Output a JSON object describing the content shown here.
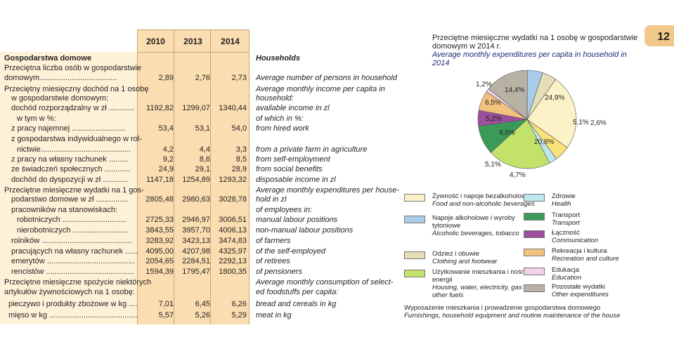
{
  "table": {
    "years": [
      "2010",
      "2013",
      "2014"
    ],
    "rows": [
      {
        "pl": "Gospodarstwa domowe",
        "en": "Households",
        "bold": true,
        "values": [
          "",
          "",
          ""
        ]
      },
      {
        "pl": "Przeciętna liczba osób w gospodarstwie",
        "en": "",
        "values": [
          "",
          "",
          ""
        ]
      },
      {
        "pl": "domowym....................................",
        "en": "Average number of persons in household",
        "values": [
          "2,89",
          "2,76",
          "2,73"
        ]
      },
      {
        "pl": "Przeciętny miesięczny dochód na 1 osobę",
        "en": "Average monthly income per capita in",
        "values": [
          "",
          "",
          ""
        ]
      },
      {
        "pl": "w gospodarstwie domowym:",
        "en": "household:",
        "values": [
          "",
          "",
          ""
        ]
      },
      {
        "pl": "dochód rozporządzalny w zł ............",
        "en": "available income in zl",
        "values": [
          "1192,82",
          "1299,07",
          "1340,44"
        ]
      },
      {
        "pl": "w tym w %:",
        "en": "of which in %:",
        "values": [
          "",
          "",
          ""
        ]
      },
      {
        "pl": "z pracy najemnej .........................",
        "en": "from hired work",
        "values": [
          "53,4",
          "53,1",
          "54,0"
        ]
      },
      {
        "pl": "z gospodarstwa indywidualnego w rol-",
        "en": "",
        "values": [
          "",
          "",
          ""
        ]
      },
      {
        "pl": "nictwie..........................................",
        "en": "from a private farm in agriculture",
        "values": [
          "4,2",
          "4,4",
          "3,3"
        ]
      },
      {
        "pl": "z pracy na własny rachunek .........",
        "en": "from self-employment",
        "values": [
          "9,2",
          "8,6",
          "8,5"
        ]
      },
      {
        "pl": "ze świadczeń społecznych ............",
        "en": "from social benefits",
        "values": [
          "24,9",
          "29,1",
          "28,9"
        ]
      },
      {
        "pl": "dochód do dyspozycji w zł ............",
        "en": "disposable income in zl",
        "values": [
          "1147,18",
          "1254,89",
          "1293,32"
        ]
      },
      {
        "pl": "Przeciętne miesięczne wydatki na 1 gos-",
        "en": "Average monthly expenditures per house-",
        "values": [
          "",
          "",
          ""
        ]
      },
      {
        "pl": "podarstwo domowe w zł ...............",
        "en": "hold in zl",
        "values": [
          "2805,48",
          "2980,63",
          "3028,78"
        ]
      },
      {
        "pl": "pracowników na stanowiskach:",
        "en": "of employees in:",
        "values": [
          "",
          "",
          ""
        ]
      },
      {
        "pl": "robotniczych ..............................",
        "en": "manual labour positions",
        "values": [
          "2725,33",
          "2946,97",
          "3006,51"
        ]
      },
      {
        "pl": "nierobotniczych ..........................",
        "en": "non-manual labour positions",
        "values": [
          "3843,55",
          "3957,70",
          "4006,13"
        ]
      },
      {
        "pl": "rolników ..........................................",
        "en": "of farmers",
        "values": [
          "3283,92",
          "3423,13",
          "3474,83"
        ]
      },
      {
        "pl": "pracujących na własny rachunek ......",
        "en": "of the self-employed",
        "values": [
          "4095,00",
          "4207,98",
          "4325,97"
        ]
      },
      {
        "pl": "emerytów .........................................",
        "en": "of retirees",
        "values": [
          "2054,65",
          "2284,51",
          "2292,13"
        ]
      },
      {
        "pl": "rencistów .........................................",
        "en": "of pensioners",
        "values": [
          "1594,39",
          "1795,47",
          "1800,35"
        ]
      },
      {
        "pl": "Przeciętne miesięczne spożycie niektórych",
        "en": "Average monthly consumption of select-",
        "values": [
          "",
          "",
          ""
        ]
      },
      {
        "pl": "artykułów żywnościowych na 1 osobę:",
        "en": "ed foodstuffs per capita:",
        "values": [
          "",
          "",
          ""
        ]
      },
      {
        "pl": "pieczywo i produkty zbożowe w kg ....",
        "en": "bread and cereals in kg",
        "values": [
          "7,01",
          "6,45",
          "6,26"
        ]
      },
      {
        "pl": "mięso w kg .........................................",
        "en": "meat in kg",
        "values": [
          "5,57",
          "5,26",
          "5,29"
        ]
      }
    ]
  },
  "chart": {
    "title_pl": "Przeciętne miesięczne wydatki na 1 osobę w gospodarstwie domowym w 2014 r.",
    "title_en": "Average monthly expenditures per capita in household in 2014",
    "page_number": "12"
  },
  "chart_data": {
    "type": "pie",
    "slices": [
      {
        "label_pl": "Żywność i napoje bezalkoholowe",
        "label_en": "Food and non-alcoholic beverages",
        "value": 24.9,
        "display": "24,9%",
        "color": "#fbf3c7"
      },
      {
        "label_pl": "Wyposażenie mieszkania i prowadzenie gospodarstwa domowego",
        "label_en": "Furnishings, household equipment and routine maintenance of the house",
        "value": 5.1,
        "display": "5,1%",
        "color": "#f9e27a"
      },
      {
        "label_pl": "Zdrowie",
        "label_en": "Health",
        "value": 2.6,
        "display": "2,6%",
        "color": "#bfe7ee"
      },
      {
        "label_pl": "Użytkowanie mieszkania i nośniki energii",
        "label_en": "Housing, water, electricity, gas and other fuels",
        "value": 20.8,
        "display": "20,8%",
        "color": "#c3e26a"
      },
      {
        "label_pl": "Transport",
        "label_en": "Transport",
        "value": 9.6,
        "display": "9,6%",
        "color": "#3c9a59"
      },
      {
        "label_pl": "Łączność",
        "label_en": "Communication",
        "value": 5.2,
        "display": "5,2%",
        "color": "#9b4f9c"
      },
      {
        "label_pl": "Rekreacja i kultura",
        "label_en": "Recreation and culture",
        "value": 6.5,
        "display": "6,5%",
        "color": "#f2c37f"
      },
      {
        "label_pl": "Edukacja",
        "label_en": "Education",
        "value": 1.2,
        "display": "1,2%",
        "color": "#f1d2e6"
      },
      {
        "label_pl": "Pozostałe wydatki",
        "label_en": "Other expenditures",
        "value": 14.4,
        "display": "14,4%",
        "color": "#b8b2a4"
      },
      {
        "label_pl": "Napoje alkoholowe i wyroby tytoniowe",
        "label_en": "Alcoholic beverages, tobacco",
        "value": 5.1,
        "display": "5,1%",
        "color": "#a8cbe7"
      },
      {
        "label_pl": "Odzież i obuwie",
        "label_en": "Clothing and footwear",
        "value": 4.7,
        "display": "4,7%",
        "color": "#e5deb6"
      }
    ],
    "legend": [
      {
        "pl": "Żywność i napoje bezalkoholowe",
        "en": "Food and non-alcoholic beverages",
        "color": "#fbf3c7"
      },
      {
        "pl": "Napoje alkoholowe i wyroby tytoniowe",
        "en": "Alcoholic beverages, tobacco",
        "color": "#a8cbe7"
      },
      {
        "pl": "Odzież i obuwie",
        "en": "Clothing and footwear",
        "color": "#e5deb6"
      },
      {
        "pl": "Użytkowanie mieszkania i nośniki energii",
        "en": "Housing, water, electricity, gas and other fuels",
        "color": "#c3e26a"
      },
      {
        "pl": "Wyposażenie mieszkania i prowadzenie gospodarstwa domowego",
        "en": "Furnishings, household equipment and routine maintenance of the house",
        "color": "#f9e27a"
      },
      {
        "pl": "Zdrowie",
        "en": "Health",
        "color": "#bfe7ee"
      },
      {
        "pl": "Transport",
        "en": "Transport",
        "color": "#3c9a59"
      },
      {
        "pl": "Łączność",
        "en": "Communication",
        "color": "#9b4f9c"
      },
      {
        "pl": "Rekreacja i kultura",
        "en": "Recreation and culture",
        "color": "#f2c37f"
      },
      {
        "pl": "Edukacja",
        "en": "Education",
        "color": "#f1d2e6"
      },
      {
        "pl": "Pozostałe wydatki",
        "en": "Other expenditures",
        "color": "#b8b2a4"
      }
    ]
  }
}
